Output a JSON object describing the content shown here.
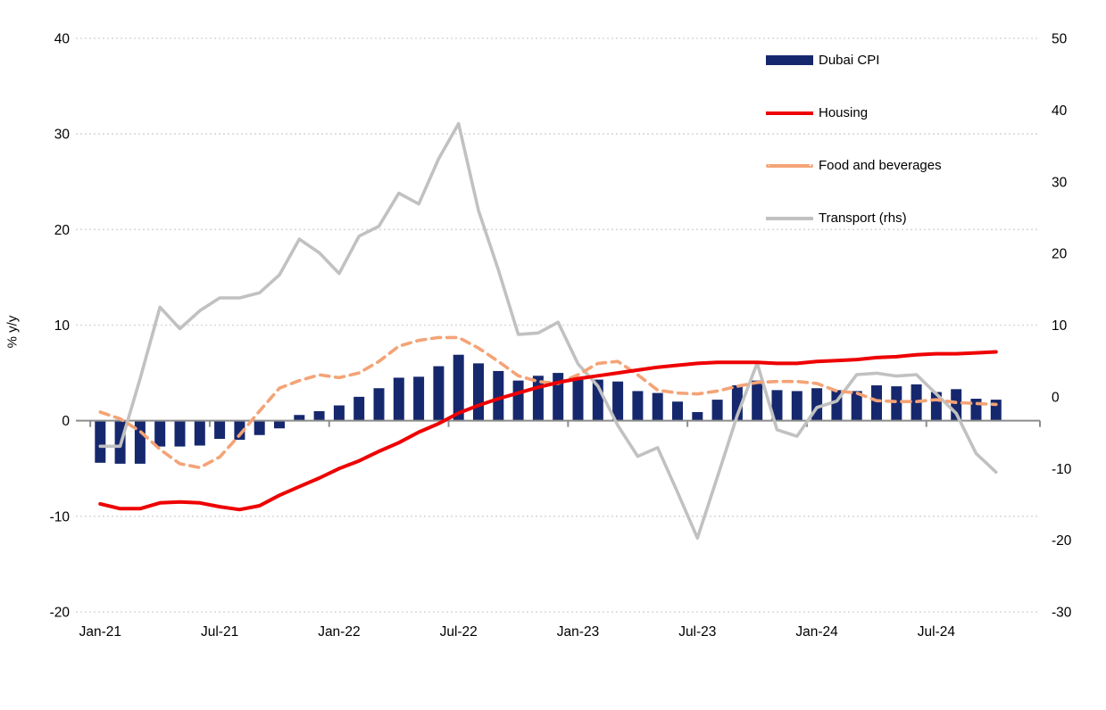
{
  "chart_data": {
    "type": "bar",
    "title": "",
    "ylabel": "% y/y",
    "grid": "horizontal-dotted",
    "legend_position": "top-right",
    "left_axis": {
      "min": -20,
      "max": 40,
      "ticks": [
        40,
        30,
        20,
        10,
        0,
        -10,
        -20
      ]
    },
    "right_axis": {
      "min": -30,
      "max": 50,
      "ticks": [
        50,
        40,
        30,
        20,
        10,
        0,
        -10,
        -20,
        -30
      ]
    },
    "x_tick_labels": [
      "Jan-21",
      "Jul-21",
      "Jan-22",
      "Jul-22",
      "Jan-23",
      "Jul-23",
      "Jan-24",
      "Jul-24"
    ],
    "categories": [
      "Jan-21",
      "Feb-21",
      "Mar-21",
      "Apr-21",
      "May-21",
      "Jun-21",
      "Jul-21",
      "Aug-21",
      "Sep-21",
      "Oct-21",
      "Nov-21",
      "Dec-21",
      "Jan-22",
      "Feb-22",
      "Mar-22",
      "Apr-22",
      "May-22",
      "Jun-22",
      "Jul-22",
      "Aug-22",
      "Sep-22",
      "Oct-22",
      "Nov-22",
      "Dec-22",
      "Jan-23",
      "Feb-23",
      "Mar-23",
      "Apr-23",
      "May-23",
      "Jun-23",
      "Jul-23",
      "Aug-23",
      "Sep-23",
      "Oct-23",
      "Nov-23",
      "Dec-23",
      "Jan-24",
      "Feb-24",
      "Mar-24",
      "Apr-24",
      "May-24",
      "Jun-24",
      "Jul-24",
      "Aug-24",
      "Sep-24",
      "Oct-24"
    ],
    "series": [
      {
        "name": "Dubai CPI",
        "type": "bar",
        "axis": "left",
        "color": "#16286D",
        "values": [
          -4.4,
          -4.5,
          -4.5,
          -2.7,
          -2.7,
          -2.6,
          -1.9,
          -2.0,
          -1.5,
          -0.8,
          0.6,
          1.0,
          1.6,
          2.5,
          3.4,
          4.5,
          4.6,
          5.7,
          6.9,
          6.0,
          5.2,
          4.2,
          4.7,
          5.0,
          4.3,
          4.3,
          4.1,
          3.1,
          2.9,
          2.0,
          0.9,
          2.2,
          3.7,
          4.2,
          3.2,
          3.1,
          3.4,
          3.2,
          3.1,
          3.7,
          3.6,
          3.8,
          3.0,
          3.3,
          2.3,
          2.2
        ]
      },
      {
        "name": "Housing",
        "type": "line",
        "axis": "left",
        "color": "#EE0000",
        "dash": "solid",
        "values": [
          -8.7,
          -9.2,
          -9.2,
          -8.6,
          -8.5,
          -8.6,
          -9.0,
          -9.3,
          -8.9,
          -7.8,
          -6.9,
          -6.0,
          -5.0,
          -4.2,
          -3.2,
          -2.3,
          -1.2,
          -0.3,
          0.8,
          1.6,
          2.3,
          2.9,
          3.5,
          4.0,
          4.4,
          4.7,
          5.0,
          5.3,
          5.6,
          5.8,
          6.0,
          6.1,
          6.1,
          6.1,
          6.0,
          6.0,
          6.2,
          6.3,
          6.4,
          6.6,
          6.7,
          6.9,
          7.0,
          7.0,
          7.1,
          7.2
        ]
      },
      {
        "name": "Food and beverages",
        "type": "line",
        "axis": "left",
        "color": "#F4A376",
        "dash": "dashed",
        "values": [
          0.9,
          0.2,
          -1.1,
          -3.0,
          -4.5,
          -4.9,
          -3.8,
          -1.5,
          1.0,
          3.4,
          4.2,
          4.8,
          4.5,
          5.0,
          6.2,
          7.8,
          8.4,
          8.7,
          8.7,
          7.6,
          6.2,
          4.7,
          4.1,
          3.9,
          4.8,
          6.0,
          6.2,
          4.8,
          3.2,
          2.9,
          2.8,
          3.1,
          3.6,
          4.0,
          4.1,
          4.1,
          3.9,
          3.1,
          2.9,
          2.1,
          2.0,
          2.0,
          2.2,
          1.9,
          1.8,
          1.7
        ]
      },
      {
        "name": "Transport (rhs)",
        "type": "line",
        "axis": "right",
        "color": "#C1C1C1",
        "dash": "solid",
        "values": [
          -6.9,
          -6.9,
          2.5,
          12.5,
          9.5,
          12.0,
          13.8,
          13.8,
          14.5,
          17.0,
          22.0,
          20.1,
          17.2,
          22.4,
          23.8,
          28.4,
          26.9,
          33.2,
          38.1,
          26.0,
          17.7,
          8.7,
          8.9,
          10.4,
          4.6,
          1.5,
          -4.0,
          -8.3,
          -7.1,
          -13.3,
          -19.7,
          -11.2,
          -2.6,
          4.7,
          -4.6,
          -5.5,
          -1.5,
          -0.6,
          3.1,
          3.3,
          2.9,
          3.1,
          0.4,
          -2.3,
          -7.9,
          -10.5
        ]
      }
    ],
    "colors": {
      "axis_line": "#8C8C8C",
      "gridline": "#D9D9D9",
      "text": "#000000"
    }
  }
}
